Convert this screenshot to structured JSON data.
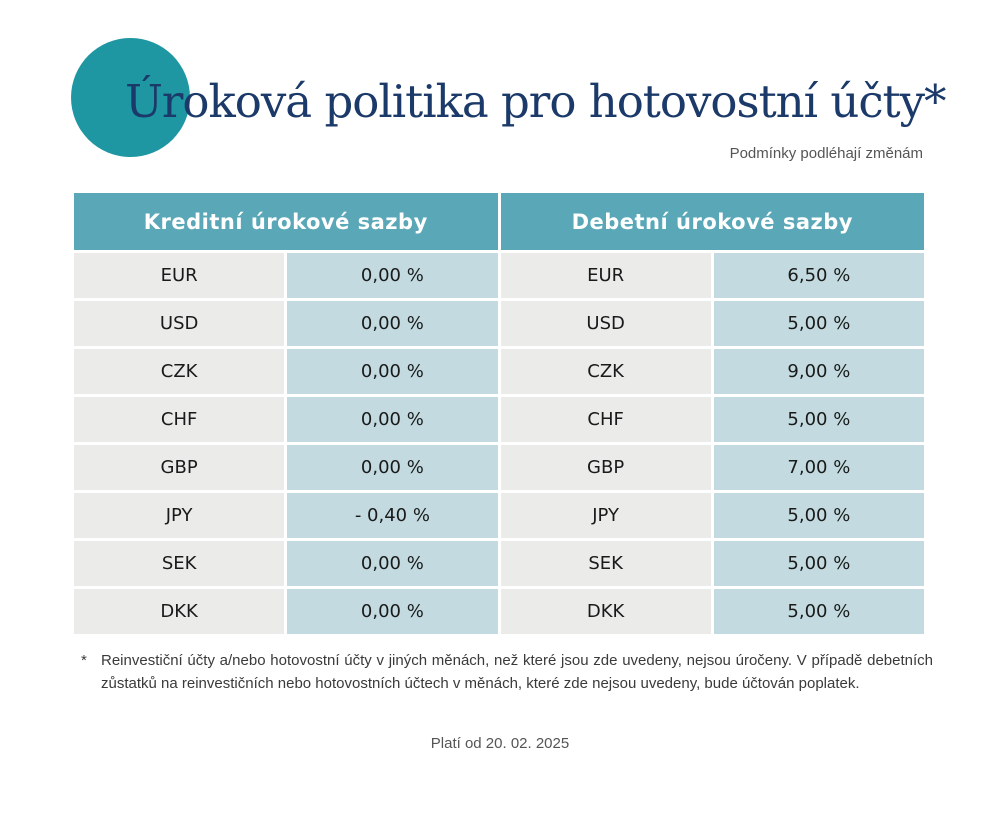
{
  "header": {
    "title": "Úroková politika pro hotovostní účty*",
    "subtitle": "Podmínky podléhají změnám",
    "accent_color": "#1f97a3",
    "title_color": "#1b3a69"
  },
  "table": {
    "credit_header": "Kreditní úrokové sazby",
    "debit_header": "Debetní úrokové sazby",
    "header_color": "#5aa8b7",
    "rows": [
      {
        "credit_currency": "EUR",
        "credit_rate": "0,00 %",
        "debit_currency": "EUR",
        "debit_rate": "6,50 %"
      },
      {
        "credit_currency": "USD",
        "credit_rate": "0,00 %",
        "debit_currency": "USD",
        "debit_rate": "5,00 %"
      },
      {
        "credit_currency": "CZK",
        "credit_rate": "0,00 %",
        "debit_currency": "CZK",
        "debit_rate": "9,00 %"
      },
      {
        "credit_currency": "CHF",
        "credit_rate": "0,00 %",
        "debit_currency": "CHF",
        "debit_rate": "5,00 %"
      },
      {
        "credit_currency": "GBP",
        "credit_rate": "0,00 %",
        "debit_currency": "GBP",
        "debit_rate": "7,00 %"
      },
      {
        "credit_currency": "JPY",
        "credit_rate": "- 0,40 %",
        "debit_currency": "JPY",
        "debit_rate": "5,00 %"
      },
      {
        "credit_currency": "SEK",
        "credit_rate": "0,00 %",
        "debit_currency": "SEK",
        "debit_rate": "5,00 %"
      },
      {
        "credit_currency": "DKK",
        "credit_rate": "0,00 %",
        "debit_currency": "DKK",
        "debit_rate": "5,00 %"
      }
    ]
  },
  "footnote": {
    "marker": "*",
    "text": "Reinvestiční účty a/nebo hotovostní účty v jiných měnách, než které jsou zde uvedeny, nejsou úročeny. V případě debetních zůstatků na reinvestičních nebo hotovostních účtech v měnách, které zde nejsou uvedeny, bude účtován poplatek."
  },
  "validity": "Platí od 20. 02. 2025"
}
